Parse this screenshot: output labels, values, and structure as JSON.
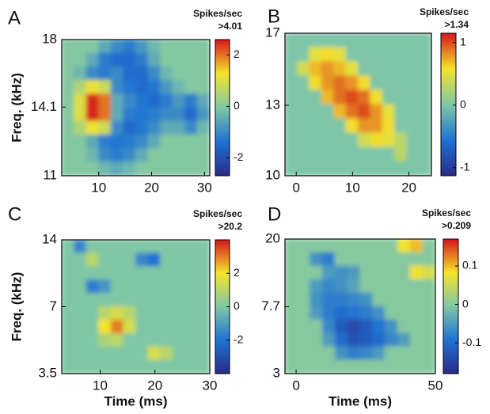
{
  "chart_data": [
    {
      "type": "heatmap",
      "panel": "A",
      "colorbar_label": "Spikes/sec",
      "colorbar_note": ">4.01",
      "y_label": "Freq. (kHz)",
      "xlim": [
        3,
        31
      ],
      "xticks": [
        10,
        20,
        30
      ],
      "ylim": [
        11,
        18
      ],
      "yticks": [
        11,
        14.1,
        18
      ],
      "yscale": "log",
      "clim": [
        -2.7,
        2.6
      ],
      "cticks": [
        -2,
        0,
        2
      ],
      "colormap": [
        "#2a2a86",
        "#1f72d4",
        "#80c7a6",
        "#f4e42c",
        "#d4161b"
      ],
      "z": [
        [
          0,
          0,
          0,
          -0.5,
          -1,
          -1.2,
          -0.8,
          -0.3,
          0,
          0,
          0,
          0
        ],
        [
          0,
          0,
          -0.5,
          -1.2,
          -1.5,
          -1.5,
          -1.2,
          -0.5,
          0,
          0,
          0,
          0
        ],
        [
          0,
          -0.3,
          -1,
          -1.2,
          -1,
          -1.5,
          -1.5,
          -1,
          -0.3,
          0,
          0,
          0
        ],
        [
          0,
          0.5,
          1.2,
          0.8,
          -1,
          -1.3,
          -1.5,
          -1.3,
          -0.8,
          -0.3,
          0,
          0
        ],
        [
          0,
          1,
          2.5,
          2,
          -0.5,
          -1,
          -1.3,
          -1.5,
          -1.2,
          -0.8,
          -1.2,
          -0.5
        ],
        [
          0,
          1,
          2.5,
          2,
          -0.5,
          -1.2,
          -1.3,
          -1.2,
          -1,
          -1,
          -1.5,
          -0.8
        ],
        [
          0,
          0.5,
          1.2,
          0.8,
          -1,
          -1.5,
          -1.3,
          -1,
          -0.5,
          -0.5,
          -1,
          -0.3
        ],
        [
          0,
          0,
          -0.5,
          -1.2,
          -1.3,
          -1.2,
          -1,
          -0.5,
          0,
          0,
          0,
          0
        ],
        [
          0,
          0,
          -0.3,
          -1,
          -1.2,
          -1,
          -0.5,
          0,
          0,
          0,
          0,
          0
        ],
        [
          0,
          0,
          0,
          -0.3,
          -0.5,
          -0.3,
          0,
          0,
          0,
          0,
          0,
          0
        ]
      ]
    },
    {
      "type": "heatmap",
      "panel": "B",
      "colorbar_label": "Spikes/sec",
      "colorbar_note": ">1.34",
      "xlim": [
        -2,
        24
      ],
      "xticks": [
        0,
        10,
        20
      ],
      "ylim": [
        10,
        17
      ],
      "yticks": [
        10,
        13,
        17
      ],
      "yscale": "log",
      "clim": [
        -1.13,
        1.15
      ],
      "cticks": [
        -1,
        0,
        1
      ],
      "colormap": [
        "#2a2a86",
        "#1f72d4",
        "#80c7a6",
        "#f4e42c",
        "#d4161b"
      ],
      "z": [
        [
          0,
          0,
          0,
          0,
          0,
          0,
          0,
          0,
          0,
          0,
          0,
          0
        ],
        [
          0,
          0,
          0.5,
          0.6,
          0.5,
          0,
          0,
          0,
          0,
          0,
          0,
          0
        ],
        [
          0,
          0.4,
          0.7,
          0.8,
          0.7,
          0.5,
          0,
          0,
          0,
          0,
          0,
          0
        ],
        [
          0,
          0,
          0.6,
          0.8,
          0.9,
          0.8,
          0.6,
          0,
          0,
          0,
          0,
          0
        ],
        [
          0,
          0,
          0,
          0.7,
          0.9,
          1,
          0.9,
          0.6,
          0,
          0,
          0,
          0
        ],
        [
          0,
          0,
          0,
          0,
          0.7,
          0.9,
          1,
          0.8,
          0.5,
          0,
          0,
          0
        ],
        [
          0,
          0,
          0,
          0,
          0,
          0.6,
          0.8,
          0.8,
          0.6,
          0,
          0,
          0
        ],
        [
          0,
          0,
          0,
          0,
          0,
          0,
          0.4,
          0.6,
          0.5,
          0.3,
          0,
          0
        ],
        [
          0,
          0,
          0,
          0,
          0,
          0,
          0,
          0,
          0,
          0.3,
          0,
          0
        ],
        [
          0,
          0,
          0,
          0,
          0,
          0,
          0,
          0,
          0,
          0,
          0,
          0
        ]
      ]
    },
    {
      "type": "heatmap",
      "panel": "C",
      "colorbar_label": "Spikes/sec",
      "colorbar_note": ">20.2",
      "y_label": "Freq. (kHz)",
      "x_label": "Time (ms)",
      "xlim": [
        3,
        30
      ],
      "xticks": [
        10,
        20,
        30
      ],
      "ylim": [
        3.5,
        14
      ],
      "yticks": [
        3.5,
        7,
        14
      ],
      "yscale": "log",
      "clim": [
        -4,
        4
      ],
      "cticks": [
        -2,
        0,
        2
      ],
      "colormap": [
        "#2a2a86",
        "#1f72d4",
        "#80c7a6",
        "#f4e42c",
        "#d4161b"
      ],
      "z": [
        [
          0,
          -1.5,
          0,
          0,
          0,
          0,
          0,
          0,
          0,
          0,
          0,
          0
        ],
        [
          0,
          0,
          1,
          0,
          0,
          0,
          -1.5,
          -2,
          0,
          0,
          0,
          0
        ],
        [
          0,
          0,
          0,
          0,
          0,
          0,
          0,
          0,
          0,
          0,
          0,
          0
        ],
        [
          0,
          0,
          -1.8,
          -1.2,
          0,
          0,
          0,
          0,
          0,
          0,
          0,
          0
        ],
        [
          0,
          0,
          0,
          0,
          0,
          0,
          0,
          0,
          0,
          0,
          0,
          0
        ],
        [
          0,
          0,
          0,
          1,
          1.5,
          1,
          0,
          0,
          0,
          0,
          0,
          0
        ],
        [
          0,
          0,
          0,
          2,
          3,
          1.5,
          0,
          0,
          0,
          0,
          0,
          0
        ],
        [
          0,
          0,
          0,
          0.8,
          1,
          0,
          0,
          0,
          0,
          0,
          0,
          0
        ],
        [
          0,
          0,
          0,
          0,
          0,
          0,
          0,
          1.5,
          1,
          0,
          0,
          0
        ],
        [
          0,
          0,
          0,
          0,
          0,
          0,
          0,
          0,
          0,
          0,
          0,
          0
        ]
      ]
    },
    {
      "type": "heatmap",
      "panel": "D",
      "colorbar_label": "Spikes/sec",
      "colorbar_note": ">0.209",
      "x_label": "Time (ms)",
      "xlim": [
        -4,
        50
      ],
      "xticks": [
        0,
        50
      ],
      "ylim": [
        3,
        20
      ],
      "yticks": [
        3,
        7.7,
        20
      ],
      "yscale": "log",
      "clim": [
        -0.18,
        0.17
      ],
      "cticks": [
        -0.1,
        0,
        0.1
      ],
      "colormap": [
        "#2a2a86",
        "#1f72d4",
        "#80c7a6",
        "#f4e42c",
        "#d4161b"
      ],
      "z": [
        [
          0,
          0,
          0,
          0,
          0,
          0,
          0,
          0,
          0,
          0.08,
          0.1,
          0
        ],
        [
          0,
          0,
          -0.06,
          -0.08,
          0,
          0,
          0,
          0,
          0,
          0,
          0,
          0
        ],
        [
          0,
          0,
          0,
          -0.05,
          -0.06,
          -0.05,
          0,
          0,
          0,
          0,
          0.08,
          0.06
        ],
        [
          0,
          0,
          -0.05,
          -0.07,
          -0.06,
          -0.04,
          0,
          0,
          0,
          0,
          0,
          0
        ],
        [
          0,
          0,
          -0.06,
          -0.08,
          -0.08,
          -0.07,
          -0.06,
          0,
          0,
          0,
          0,
          0
        ],
        [
          0,
          0,
          -0.05,
          -0.08,
          -0.1,
          -0.09,
          -0.08,
          -0.06,
          0,
          0,
          0,
          0
        ],
        [
          0,
          0,
          0,
          -0.07,
          -0.12,
          -0.14,
          -0.12,
          -0.09,
          -0.06,
          0,
          0,
          0
        ],
        [
          0,
          0,
          0,
          -0.05,
          -0.1,
          -0.13,
          -0.12,
          -0.1,
          -0.07,
          -0.05,
          0,
          0
        ],
        [
          0,
          0,
          0,
          0,
          -0.06,
          -0.08,
          -0.07,
          -0.05,
          0,
          0,
          0,
          0
        ],
        [
          0,
          0,
          0,
          0,
          0,
          0,
          0,
          0,
          0,
          0,
          0,
          0
        ]
      ]
    }
  ]
}
